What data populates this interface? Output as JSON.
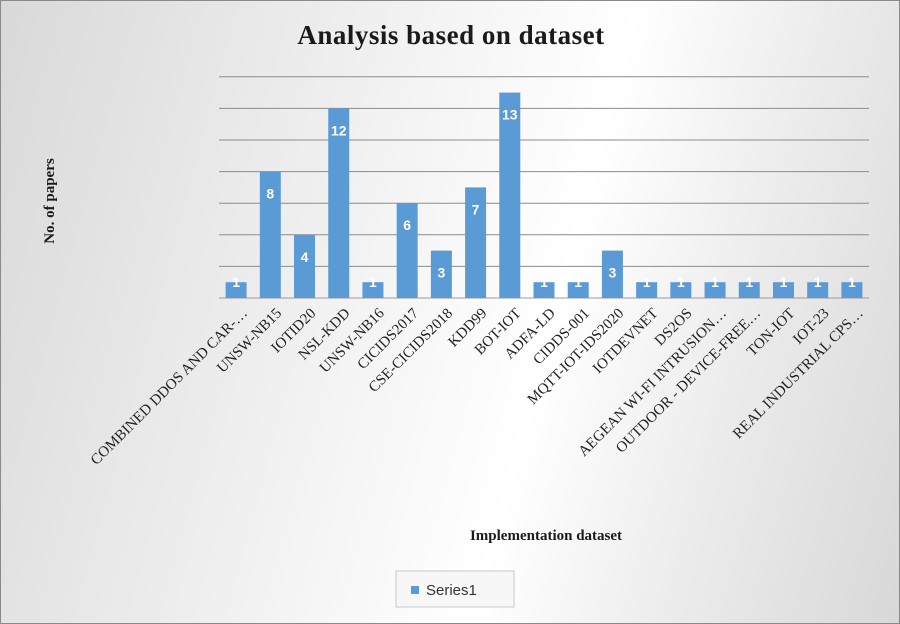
{
  "chart_data": {
    "type": "bar",
    "title": "Analysis based on dataset",
    "xlabel": "Implementation dataset",
    "ylabel": "No. of papers",
    "ylim": [
      0,
      14
    ],
    "grid": true,
    "legend_position": "bottom",
    "bar_color": "#5B9BD5",
    "categories": [
      "COMBINED DDOS AND CAR-…",
      "UNSW-NB15",
      "IOTID20",
      "NSL-KDD",
      "UNSW-NB16",
      "CICIDS2017",
      "CSE-CICIDS2018",
      "KDD99",
      "BOT-IOT",
      "ADFA-LD",
      "CIDDS-001",
      "MQTT-IOT-IDS2020",
      "IOTDEVNET",
      "DS2OS",
      "AEGEAN WI-FI INTRUSION…",
      "OUTDOOR - DEVICE-FREE…",
      "TON-IOT",
      "IOT-23",
      "REAL INDUSTRIAL CPS…"
    ],
    "series": [
      {
        "name": "Series1",
        "values": [
          1,
          8,
          4,
          12,
          1,
          6,
          3,
          7,
          13,
          1,
          1,
          3,
          1,
          1,
          1,
          1,
          1,
          1,
          1
        ]
      }
    ]
  }
}
